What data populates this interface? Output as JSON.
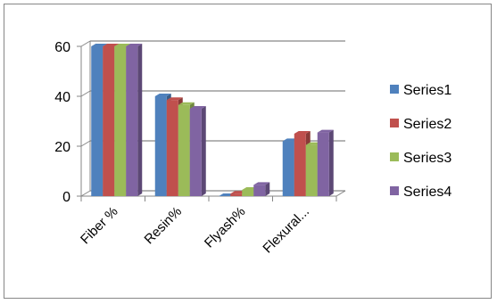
{
  "chart_data": {
    "type": "bar",
    "subtype": "3d-clustered-column",
    "categories": [
      "Fiber %",
      "Resin%",
      "Flyash%",
      "Flexural..."
    ],
    "series": [
      {
        "name": "Series1",
        "color": "#4f81bd",
        "values": [
          60,
          40,
          0,
          22
        ]
      },
      {
        "name": "Series2",
        "color": "#c0504d",
        "values": [
          60,
          38.5,
          1,
          25
        ]
      },
      {
        "name": "Series3",
        "color": "#9bbb59",
        "values": [
          60,
          36.5,
          2.5,
          20.5
        ]
      },
      {
        "name": "Series4",
        "color": "#8064a2",
        "values": [
          60,
          35,
          4.5,
          25.5
        ]
      }
    ],
    "y_ticks": [
      "0",
      "20",
      "40",
      "60"
    ],
    "ylim": [
      0,
      60
    ],
    "grid": true,
    "legend_position": "right",
    "title": "",
    "xlabel": "",
    "ylabel": ""
  }
}
